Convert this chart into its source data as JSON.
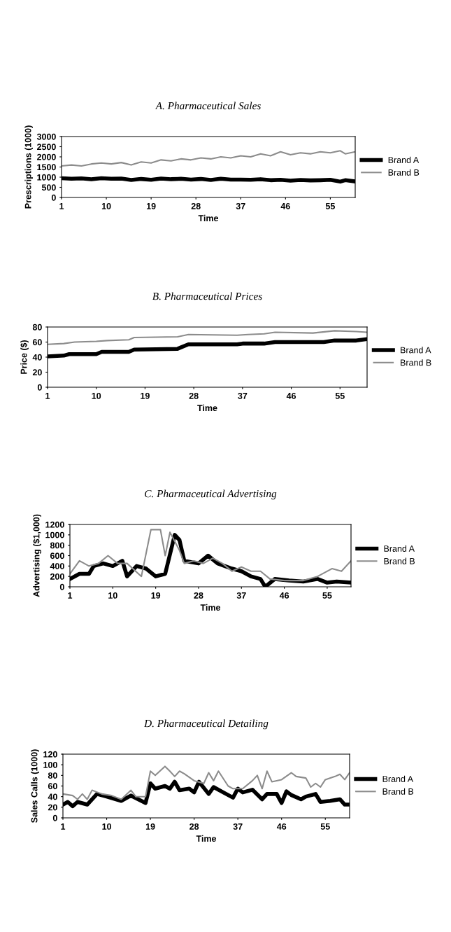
{
  "chart_data": [
    {
      "type": "line",
      "title": "A. Pharmaceutical Sales",
      "xlabel": "Time",
      "ylabel": "Prescriptions (1000)",
      "xlim": [
        1,
        60
      ],
      "xticks": [
        1,
        10,
        19,
        28,
        37,
        46,
        55
      ],
      "ylim": [
        0,
        3000
      ],
      "yticks": [
        0,
        500,
        1000,
        1500,
        2000,
        2500,
        3000
      ],
      "grid": false,
      "legend": "right",
      "marker": "none",
      "line_style": "solid",
      "series": [
        {
          "name": "Brand A",
          "color": "#000000",
          "x": [
            1,
            3,
            5,
            7,
            9,
            11,
            13,
            15,
            17,
            19,
            21,
            23,
            25,
            27,
            29,
            31,
            33,
            35,
            37,
            39,
            41,
            43,
            45,
            47,
            49,
            51,
            53,
            55,
            57,
            58,
            60
          ],
          "values": [
            950,
            920,
            940,
            900,
            950,
            920,
            930,
            860,
            910,
            870,
            930,
            900,
            920,
            880,
            910,
            860,
            920,
            880,
            880,
            870,
            900,
            850,
            870,
            830,
            860,
            840,
            850,
            870,
            780,
            850,
            790
          ]
        },
        {
          "name": "Brand B",
          "color": "#8c8c8c",
          "x": [
            1,
            3,
            5,
            7,
            9,
            11,
            13,
            15,
            17,
            19,
            21,
            23,
            25,
            27,
            29,
            31,
            33,
            35,
            37,
            39,
            41,
            43,
            45,
            47,
            49,
            51,
            53,
            55,
            57,
            58,
            60
          ],
          "values": [
            1550,
            1600,
            1550,
            1650,
            1700,
            1650,
            1720,
            1600,
            1750,
            1700,
            1850,
            1800,
            1900,
            1850,
            1950,
            1900,
            2000,
            1950,
            2050,
            2000,
            2150,
            2050,
            2250,
            2100,
            2200,
            2150,
            2250,
            2200,
            2300,
            2150,
            2250
          ]
        }
      ]
    },
    {
      "type": "line",
      "title": "B. Pharmaceutical Prices",
      "xlabel": "Time",
      "ylabel": "Price ($)",
      "xlim": [
        1,
        60
      ],
      "xticks": [
        1,
        10,
        19,
        28,
        37,
        46,
        55
      ],
      "ylim": [
        0,
        80
      ],
      "yticks": [
        0,
        20,
        40,
        60,
        80
      ],
      "grid": false,
      "legend": "right",
      "marker": "none",
      "line_style": "solid",
      "series": [
        {
          "name": "Brand A",
          "color": "#000000",
          "x": [
            1,
            4,
            5,
            10,
            11,
            16,
            17,
            25,
            27,
            36,
            37,
            41,
            43,
            52,
            54,
            58,
            60
          ],
          "values": [
            41,
            42,
            44,
            44,
            47,
            47,
            50,
            51,
            57,
            57,
            58,
            58,
            60,
            60,
            62,
            62,
            64
          ]
        },
        {
          "name": "Brand B",
          "color": "#8c8c8c",
          "x": [
            1,
            4,
            6,
            10,
            12,
            16,
            17,
            25,
            27,
            36,
            38,
            41,
            43,
            50,
            54,
            58,
            60
          ],
          "values": [
            57,
            58,
            60,
            61,
            62,
            63,
            66,
            67,
            70,
            69,
            70,
            71,
            73,
            72,
            75,
            74,
            73
          ]
        }
      ]
    },
    {
      "type": "line",
      "title": "C. Pharmaceutical Advertising",
      "xlabel": "Time",
      "ylabel": "Advertising ($1,000)",
      "xlim": [
        1,
        60
      ],
      "xticks": [
        1,
        10,
        19,
        28,
        37,
        46,
        55
      ],
      "ylim": [
        0,
        1200
      ],
      "yticks": [
        0,
        200,
        400,
        600,
        800,
        1000,
        1200
      ],
      "grid": false,
      "legend": "right",
      "marker": "none",
      "line_style": "solid",
      "series": [
        {
          "name": "Brand A",
          "color": "#000000",
          "x": [
            1,
            3,
            5,
            6,
            8,
            10,
            12,
            13,
            15,
            17,
            19,
            21,
            23,
            24,
            25,
            28,
            30,
            32,
            35,
            37,
            39,
            41,
            42,
            44,
            47,
            50,
            53,
            55,
            57,
            60
          ],
          "values": [
            150,
            250,
            250,
            400,
            450,
            400,
            500,
            200,
            400,
            350,
            200,
            250,
            1000,
            900,
            500,
            450,
            600,
            450,
            350,
            300,
            200,
            150,
            0,
            150,
            120,
            100,
            150,
            80,
            100,
            80
          ]
        },
        {
          "name": "Brand B",
          "color": "#8c8c8c",
          "x": [
            1,
            3,
            5,
            7,
            9,
            11,
            13,
            16,
            18,
            20,
            21,
            22,
            24,
            25,
            27,
            29,
            31,
            33,
            35,
            37,
            39,
            41,
            43,
            46,
            50,
            53,
            56,
            58,
            60
          ],
          "values": [
            250,
            500,
            400,
            450,
            600,
            450,
            450,
            200,
            1100,
            1100,
            600,
            1050,
            700,
            450,
            500,
            450,
            550,
            450,
            300,
            380,
            300,
            300,
            150,
            120,
            120,
            200,
            350,
            300,
            500
          ]
        }
      ]
    },
    {
      "type": "line",
      "title": "D. Pharmaceutical Detailing",
      "xlabel": "Time",
      "ylabel": "Sales Calls (1000)",
      "xlim": [
        1,
        60
      ],
      "xticks": [
        1,
        10,
        19,
        28,
        37,
        46,
        55
      ],
      "ylim": [
        0,
        120
      ],
      "yticks": [
        0,
        20,
        40,
        60,
        80,
        100,
        120
      ],
      "grid": false,
      "legend": "right",
      "marker": "none",
      "line_style": "solid",
      "series": [
        {
          "name": "Brand A",
          "color": "#000000",
          "x": [
            1,
            2,
            3,
            4,
            6,
            8,
            10,
            13,
            15,
            18,
            19,
            20,
            22,
            23,
            24,
            25,
            27,
            28,
            29,
            31,
            32,
            34,
            36,
            37,
            38,
            40,
            42,
            43,
            45,
            46,
            47,
            48,
            50,
            51,
            53,
            54,
            56,
            58,
            59,
            60
          ],
          "values": [
            25,
            30,
            22,
            30,
            25,
            45,
            40,
            32,
            42,
            28,
            65,
            55,
            60,
            55,
            68,
            52,
            55,
            48,
            68,
            45,
            58,
            48,
            38,
            55,
            48,
            53,
            35,
            45,
            45,
            28,
            50,
            43,
            35,
            40,
            45,
            30,
            32,
            35,
            25,
            25
          ]
        },
        {
          "name": "Brand B",
          "color": "#8c8c8c",
          "x": [
            1,
            3,
            4,
            5,
            6,
            7,
            9,
            11,
            13,
            15,
            16,
            18,
            19,
            20,
            22,
            23,
            24,
            25,
            26,
            28,
            30,
            31,
            32,
            33,
            35,
            36,
            38,
            40,
            41,
            42,
            43,
            44,
            46,
            48,
            49,
            51,
            52,
            53,
            54,
            55,
            57,
            58,
            59,
            60
          ],
          "values": [
            45,
            42,
            35,
            45,
            35,
            52,
            45,
            42,
            35,
            52,
            40,
            40,
            88,
            80,
            97,
            88,
            78,
            88,
            83,
            70,
            65,
            85,
            70,
            88,
            60,
            55,
            55,
            70,
            80,
            55,
            88,
            68,
            72,
            85,
            78,
            75,
            58,
            65,
            58,
            72,
            78,
            82,
            72,
            85
          ]
        }
      ]
    }
  ]
}
